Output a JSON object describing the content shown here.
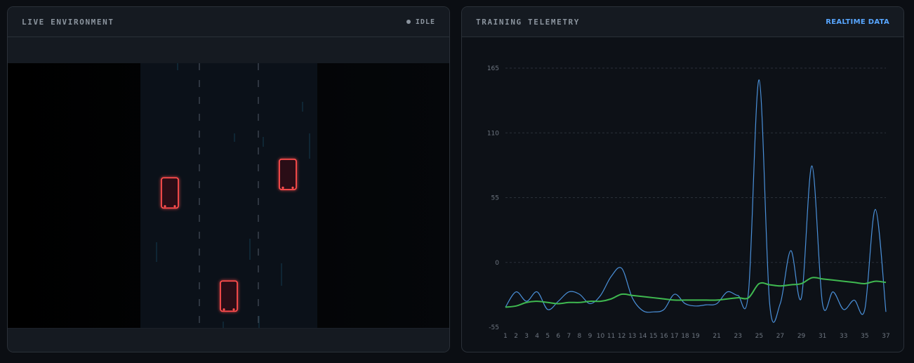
{
  "env_panel": {
    "title": "LIVE ENVIRONMENT",
    "status": "IDLE"
  },
  "telemetry_panel": {
    "title": "TRAINING TELEMETRY",
    "badge": "REALTIME DATA"
  },
  "chart_data": {
    "type": "line",
    "title": "",
    "xlabel": "",
    "ylabel": "",
    "ylim": [
      -55,
      165
    ],
    "yticks": [
      -55,
      0,
      55,
      110,
      165
    ],
    "x_tick_labels": [
      "1",
      "2",
      "3",
      "4",
      "5",
      "6",
      "7",
      "8",
      "9",
      "10",
      "11",
      "12",
      "13",
      "14",
      "15",
      "16",
      "17",
      "18",
      "19",
      "21",
      "23",
      "25",
      "27",
      "29",
      "31",
      "33",
      "35",
      "37"
    ],
    "grid": true,
    "series": [
      {
        "color": "#4a90d9",
        "points": [
          [
            1,
            -38
          ],
          [
            2,
            -25
          ],
          [
            3,
            -33
          ],
          [
            4,
            -25
          ],
          [
            5,
            -40
          ],
          [
            6,
            -33
          ],
          [
            7,
            -25
          ],
          [
            8,
            -27
          ],
          [
            9,
            -35
          ],
          [
            10,
            -28
          ],
          [
            11,
            -12
          ],
          [
            12,
            -5
          ],
          [
            13,
            -30
          ],
          [
            14,
            -41
          ],
          [
            15,
            -42
          ],
          [
            16,
            -40
          ],
          [
            17,
            -27
          ],
          [
            18,
            -35
          ],
          [
            19,
            -37
          ],
          [
            20,
            -36
          ],
          [
            21,
            -35
          ],
          [
            22,
            -25
          ],
          [
            23,
            -28
          ],
          [
            24,
            -25
          ],
          [
            25,
            155
          ],
          [
            26,
            -35
          ],
          [
            27,
            -35
          ],
          [
            28,
            10
          ],
          [
            29,
            -30
          ],
          [
            30,
            82
          ],
          [
            31,
            -35
          ],
          [
            32,
            -25
          ],
          [
            33,
            -40
          ],
          [
            34,
            -32
          ],
          [
            35,
            -40
          ],
          [
            36,
            45
          ],
          [
            37,
            -42
          ]
        ]
      },
      {
        "color": "#3fb950",
        "points": [
          [
            1,
            -38
          ],
          [
            2,
            -37
          ],
          [
            3,
            -34
          ],
          [
            4,
            -33
          ],
          [
            5,
            -34
          ],
          [
            6,
            -35
          ],
          [
            7,
            -34
          ],
          [
            8,
            -34
          ],
          [
            9,
            -33
          ],
          [
            10,
            -33
          ],
          [
            11,
            -31
          ],
          [
            12,
            -27
          ],
          [
            13,
            -28
          ],
          [
            14,
            -29
          ],
          [
            15,
            -30
          ],
          [
            16,
            -31
          ],
          [
            17,
            -32
          ],
          [
            18,
            -32
          ],
          [
            19,
            -32
          ],
          [
            20,
            -32
          ],
          [
            21,
            -32
          ],
          [
            22,
            -31
          ],
          [
            23,
            -30
          ],
          [
            24,
            -30
          ],
          [
            25,
            -18
          ],
          [
            26,
            -19
          ],
          [
            27,
            -20
          ],
          [
            28,
            -19
          ],
          [
            29,
            -18
          ],
          [
            30,
            -13
          ],
          [
            31,
            -14
          ],
          [
            32,
            -15
          ],
          [
            33,
            -16
          ],
          [
            34,
            -17
          ],
          [
            35,
            -18
          ],
          [
            36,
            -16
          ],
          [
            37,
            -17
          ]
        ]
      }
    ]
  },
  "simulation": {
    "lane_edge_color": "#1f9cf0",
    "car_color": "#ff4d4d",
    "cars": [
      {
        "lane": 1,
        "progress": 0.49
      },
      {
        "lane": 3,
        "progress": 0.42
      },
      {
        "lane": 2,
        "progress": 0.88
      }
    ]
  }
}
